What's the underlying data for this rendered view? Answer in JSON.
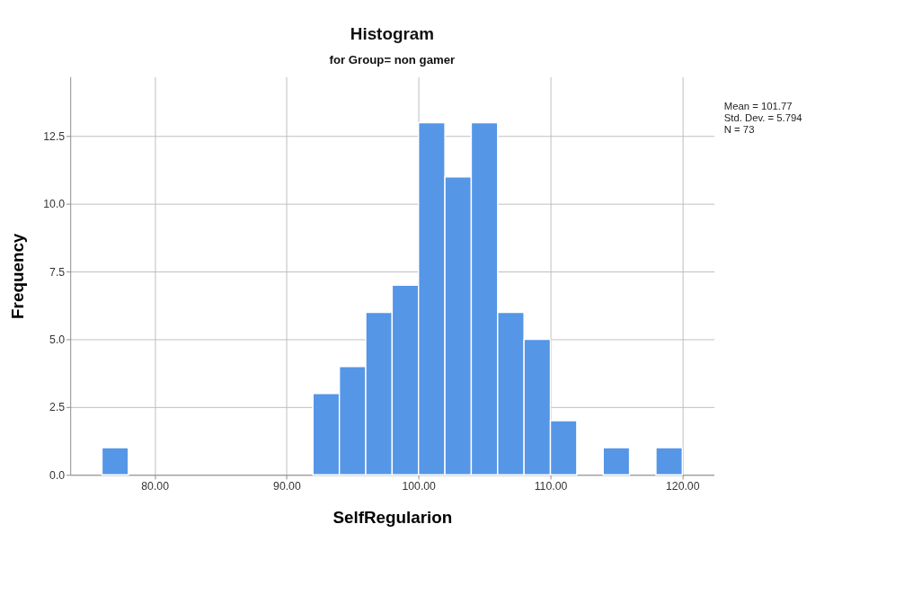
{
  "chart_data": {
    "type": "histogram",
    "title": "Histogram",
    "subtitle": "for Group= non gamer",
    "xlabel": "SelfRegularion",
    "ylabel": "Frequency",
    "bins": [
      76,
      78,
      80,
      82,
      84,
      86,
      88,
      90,
      92,
      94,
      96,
      98,
      100,
      102,
      104,
      106,
      108,
      110,
      112,
      114,
      116,
      118,
      120
    ],
    "values": [
      1,
      0,
      0,
      0,
      0,
      0,
      0,
      0,
      3,
      4,
      6,
      7,
      13,
      11,
      13,
      6,
      5,
      2,
      0,
      1,
      0,
      1
    ],
    "color": "#5596e6",
    "xlim": [
      73.6,
      122.4
    ],
    "xticks": [
      {
        "value": 80,
        "label": "80.00"
      },
      {
        "value": 90,
        "label": "90.00"
      },
      {
        "value": 100,
        "label": "100.00"
      },
      {
        "value": 110,
        "label": "110.00"
      },
      {
        "value": 120,
        "label": "120.00"
      }
    ],
    "ylim": [
      0,
      14.7
    ],
    "yticks": [
      {
        "value": 0,
        "label": "0.0"
      },
      2.5,
      {
        "value": 5,
        "label": "5.0"
      },
      7.5,
      {
        "value": 10,
        "label": "10.0"
      },
      12.5
    ],
    "grid": true,
    "annotations": [
      "Mean = 101.77",
      "Std. Dev. = 5.794",
      "N = 73"
    ]
  }
}
